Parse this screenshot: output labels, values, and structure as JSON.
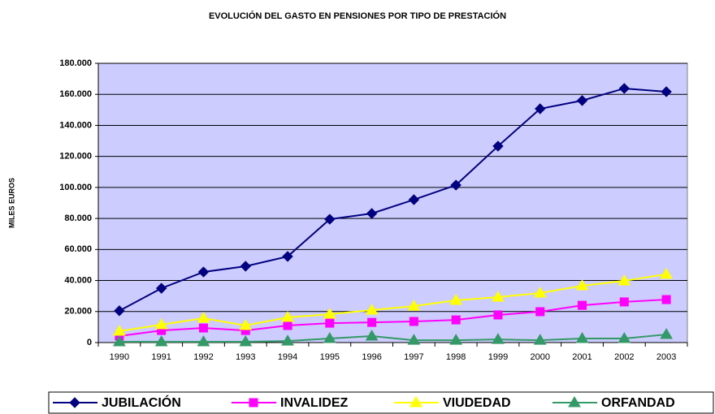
{
  "chart_data": {
    "type": "line",
    "title": "EVOLUCIÓN DEL GASTO EN PENSIONES POR TIPO DE PRESTACIÓN",
    "y_label": "MILES EUROS",
    "categories": [
      "1990",
      "1991",
      "1992",
      "1993",
      "1994",
      "1995",
      "1996",
      "1997",
      "1998",
      "1999",
      "2000",
      "2001",
      "2002",
      "2003"
    ],
    "series": [
      {
        "name": "JUBILACIÓN",
        "color": "#000080",
        "marker": "diamond",
        "values": [
          20500,
          35000,
          45500,
          49200,
          55500,
          79500,
          83200,
          92100,
          101500,
          126600,
          150700,
          156000,
          163800,
          161700
        ]
      },
      {
        "name": "INVALIDEZ",
        "color": "#ff00ff",
        "marker": "square",
        "values": [
          4200,
          7800,
          9400,
          7800,
          11000,
          12500,
          13000,
          13600,
          14600,
          17800,
          19900,
          24000,
          26200,
          27700
        ]
      },
      {
        "name": "VIUDEDAD",
        "color": "#ffff00",
        "marker": "triangle",
        "values": [
          7300,
          11500,
          15700,
          11000,
          16200,
          18300,
          20900,
          23500,
          27200,
          29300,
          31900,
          36600,
          39800,
          44000
        ]
      },
      {
        "name": "ORFANDAD",
        "color": "#339966",
        "marker": "triangle",
        "values": [
          500,
          500,
          500,
          500,
          1000,
          2600,
          4200,
          1500,
          1500,
          2000,
          1500,
          2600,
          2600,
          5200
        ]
      }
    ],
    "ylim": [
      0,
      180000
    ],
    "yticks": [
      0,
      {
        "value": 20000,
        "label": "20.000"
      },
      {
        "value": 40000,
        "label": "40.000"
      },
      {
        "value": 60000,
        "label": "60.000"
      },
      {
        "value": 80000,
        "label": "80.000"
      },
      {
        "value": 100000,
        "label": "100.000"
      },
      {
        "value": 120000,
        "label": "120.000"
      },
      {
        "value": 140000,
        "label": "140.000"
      },
      {
        "value": 160000,
        "label": "160.000"
      },
      {
        "value": 180000,
        "label": "180.000"
      }
    ],
    "grid": true,
    "background": "#ccccff",
    "legend": "bottom"
  }
}
